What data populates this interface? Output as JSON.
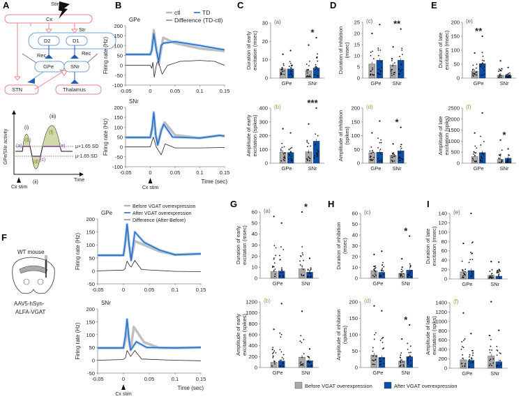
{
  "panel_letters": [
    "A",
    "B",
    "C",
    "D",
    "E",
    "F",
    "G",
    "H",
    "I"
  ],
  "diagram_A": {
    "stim": "Stim",
    "cx": "Cx",
    "str": "Str",
    "d2": "D2",
    "d1": "D1",
    "rec_left": "Rec",
    "rec_right": "Rec",
    "gpe": "GPe",
    "snr": "SNr",
    "stn": "STN",
    "thalamus": "Thalamus",
    "ylabel": "GPe/SNr activity",
    "xlabel": "Time",
    "cx_stim": "Cx stim",
    "peaks": [
      "(i)",
      "(ii)",
      "(iii)"
    ],
    "params": [
      "(a)",
      "(b)",
      "(c)",
      "(d)",
      "(e)",
      "(f)"
    ],
    "thr_high": "μ+1.65 SD",
    "thr_low": "μ-1.65 SD",
    "colors": {
      "pink": "#e8868a",
      "blue_line": "#6fa0d8",
      "olive": "#d3d8a8",
      "purple": "#7b3fa0",
      "dark_blue": "#1f5fb0"
    }
  },
  "mouse_F": {
    "title": "WT mouse",
    "virus_line1": "AAV5-hSyn-",
    "virus_line2": "ALFA-VGAT"
  },
  "colors": {
    "gray": "#b8b8b8",
    "blue": "#2a6fc4",
    "dark_blue": "#0b4ea8",
    "diff": "#222222",
    "label_purple": "#7b3fa0",
    "label_olive": "#9a9a4a"
  },
  "chart_data": [
    {
      "id": "B-GPe",
      "type": "line",
      "title": "GPe",
      "xlabel": "",
      "ylabel": "Firing rate (Hz)",
      "xlim": [
        -0.05,
        0.15
      ],
      "ylim": [
        -100,
        200
      ],
      "xticks": [
        "-0.05",
        "0",
        "0.05",
        "0.1",
        "0.15"
      ],
      "yticks": [
        "200",
        "150",
        "100",
        "50",
        "0",
        "-50",
        "-100"
      ],
      "legend": [
        "ctl",
        "TD",
        "Difference (TD-ctl)"
      ],
      "series": [
        {
          "name": "ctl",
          "x": [
            -0.05,
            0,
            0.003,
            0.007,
            0.012,
            0.017,
            0.022,
            0.026,
            0.05,
            0.1,
            0.15
          ],
          "y": [
            55,
            55,
            80,
            178,
            90,
            5,
            80,
            140,
            112,
            85,
            72
          ]
        },
        {
          "name": "TD",
          "x": [
            -0.05,
            0,
            0.003,
            0.007,
            0.012,
            0.017,
            0.022,
            0.026,
            0.05,
            0.1,
            0.15
          ],
          "y": [
            55,
            55,
            75,
            160,
            80,
            20,
            100,
            112,
            120,
            100,
            78
          ]
        },
        {
          "name": "Difference (TD-ctl)",
          "x": [
            -0.05,
            0,
            0.003,
            0.005,
            0.008,
            0.013,
            0.016,
            0.024,
            0.035,
            0.06,
            0.1,
            0.13,
            0.15
          ],
          "y": [
            0,
            0,
            -15,
            15,
            -60,
            10,
            20,
            -45,
            0,
            20,
            25,
            20,
            0
          ]
        }
      ]
    },
    {
      "id": "B-SNr",
      "type": "line",
      "title": "SNr",
      "xlabel": "Time (sec)",
      "ylabel": "Firing rate (Hz)",
      "xlim": [
        -0.05,
        0.15
      ],
      "ylim": [
        -100,
        200
      ],
      "xticks": [
        "-0.05",
        "0",
        "0.05",
        "0.1",
        "0.15"
      ],
      "yticks": [
        "200",
        "150",
        "100",
        "50",
        "0",
        "-50",
        "-100"
      ],
      "annotation": "Cx stim",
      "series": [
        {
          "name": "ctl",
          "x": [
            -0.05,
            0,
            0.004,
            0.007,
            0.011,
            0.015,
            0.022,
            0.029,
            0.05,
            0.1,
            0.14,
            0.15
          ],
          "y": [
            48,
            48,
            90,
            160,
            60,
            10,
            90,
            125,
            60,
            45,
            58,
            55
          ]
        },
        {
          "name": "TD",
          "x": [
            -0.05,
            0,
            0.004,
            0.007,
            0.011,
            0.015,
            0.022,
            0.027,
            0.045,
            0.1,
            0.14,
            0.15
          ],
          "y": [
            48,
            48,
            100,
            175,
            60,
            10,
            80,
            115,
            50,
            45,
            58,
            55
          ]
        },
        {
          "name": "Difference (TD-ctl)",
          "x": [
            -0.05,
            0,
            0.006,
            0.012,
            0.022,
            0.03,
            0.05,
            0.1,
            0.15
          ],
          "y": [
            0,
            0,
            50,
            0,
            -40,
            15,
            -5,
            -5,
            -3
          ]
        }
      ]
    },
    {
      "id": "C-top",
      "type": "bar",
      "tag": "(a)",
      "ylabel": [
        "Duration of early",
        "excitation (msec)"
      ],
      "ylim": [
        0,
        30
      ],
      "yticks": [
        0,
        10,
        20,
        30
      ],
      "categories": [
        "GPe",
        "SNr"
      ],
      "series": [
        {
          "name": "ctl",
          "values": [
            5,
            4
          ],
          "max": [
            13,
            18
          ]
        },
        {
          "name": "TD",
          "values": [
            5,
            5.5
          ],
          "max": [
            15,
            22
          ]
        }
      ],
      "significance": [
        "",
        "*"
      ]
    },
    {
      "id": "C-bottom",
      "type": "bar",
      "tag": "(b)",
      "ylabel": [
        "Amplitude of early",
        "excitation (spikes)"
      ],
      "ylim": [
        0,
        400
      ],
      "yticks": [
        0,
        100,
        200,
        300,
        400
      ],
      "categories": [
        "GPe",
        "SNr"
      ],
      "series": [
        {
          "name": "ctl",
          "values": [
            80,
            82
          ],
          "max": [
            250,
            285
          ]
        },
        {
          "name": "TD",
          "values": [
            78,
            160
          ],
          "max": [
            220,
            400
          ]
        }
      ],
      "significance": [
        "",
        "***"
      ]
    },
    {
      "id": "D-top",
      "type": "bar",
      "tag": "(c)",
      "ylabel": [
        "Duration of inhibition",
        "(msec)"
      ],
      "ylim": [
        0,
        25
      ],
      "yticks": [
        0,
        5,
        10,
        15,
        20,
        25
      ],
      "categories": [
        "GPe",
        "SNr"
      ],
      "series": [
        {
          "name": "ctl",
          "values": [
            6.3,
            5.8
          ],
          "max": [
            20,
            14
          ]
        },
        {
          "name": "TD",
          "values": [
            8,
            8
          ],
          "max": [
            24,
            22
          ]
        }
      ],
      "significance": [
        "",
        "**"
      ]
    },
    {
      "id": "D-bottom",
      "type": "bar",
      "tag": "(d)",
      "ylabel": [
        "Amplitude of inhibition",
        "(spikes)"
      ],
      "ylim": [
        0,
        200
      ],
      "yticks": [
        0,
        50,
        100,
        150,
        200
      ],
      "categories": [
        "GPe",
        "SNr"
      ],
      "series": [
        {
          "name": "ctl",
          "values": [
            38,
            28
          ],
          "max": [
            110,
            70
          ]
        },
        {
          "name": "TD",
          "values": [
            40,
            45
          ],
          "max": [
            153,
            130
          ]
        }
      ],
      "significance": [
        "",
        "*"
      ]
    },
    {
      "id": "E-top",
      "type": "bar",
      "tag": "(e)",
      "ylabel": [
        "Duration of late",
        "excitation (msec)"
      ],
      "ylim": [
        0,
        200
      ],
      "yticks": [
        0,
        50,
        100,
        150,
        200
      ],
      "categories": [
        "GPe",
        "SNr"
      ],
      "series": [
        {
          "name": "ctl",
          "values": [
            25,
            10
          ],
          "max": [
            90,
            62
          ]
        },
        {
          "name": "TD",
          "values": [
            52,
            10
          ],
          "max": [
            150,
            38
          ]
        }
      ],
      "significance": [
        "**",
        ""
      ]
    },
    {
      "id": "E-bottom",
      "type": "bar",
      "tag": "(f)",
      "ylabel": [
        "Amplitude of late",
        "excitation (spiks)"
      ],
      "ylim": [
        0,
        2500
      ],
      "yticks": [
        0,
        500,
        1000,
        1500,
        2000,
        2500
      ],
      "categories": [
        "GPe",
        "SNr"
      ],
      "series": [
        {
          "name": "ctl",
          "values": [
            300,
            170
          ],
          "max": [
            1370,
            1050
          ]
        },
        {
          "name": "TD",
          "values": [
            480,
            230
          ],
          "max": [
            2280,
            650
          ]
        }
      ],
      "significance": [
        "",
        "*"
      ]
    },
    {
      "id": "F-GPe",
      "type": "line",
      "title": "GPe",
      "xlabel": "",
      "ylabel": "Firing rate (Hz)",
      "xlim": [
        -0.05,
        0.15
      ],
      "ylim": [
        -50,
        200
      ],
      "xticks": [
        "-0.05",
        "0",
        "0.05",
        "0.1",
        "0.15"
      ],
      "yticks": [
        "200",
        "150",
        "100",
        "50",
        "0",
        "-50"
      ],
      "legend": [
        "Before VGAT overexpression",
        "After VGAT overexpression",
        "Difference (After-Before)"
      ],
      "series": [
        {
          "name": "Before VGAT overexpression",
          "x": [
            -0.05,
            0,
            0.003,
            0.007,
            0.011,
            0.015,
            0.022,
            0.04,
            0.07,
            0.1,
            0.15
          ],
          "y": [
            60,
            60,
            100,
            175,
            100,
            45,
            115,
            100,
            75,
            62,
            65
          ]
        },
        {
          "name": "After VGAT overexpression",
          "x": [
            -0.05,
            0,
            0.003,
            0.007,
            0.011,
            0.015,
            0.022,
            0.04,
            0.07,
            0.1,
            0.15
          ],
          "y": [
            60,
            60,
            100,
            180,
            100,
            40,
            150,
            110,
            80,
            62,
            66
          ]
        },
        {
          "name": "Difference (After-Before)",
          "x": [
            -0.05,
            0,
            0.003,
            0.007,
            0.012,
            0.015,
            0.022,
            0.035,
            0.1,
            0.15
          ],
          "y": [
            0,
            3,
            8,
            38,
            20,
            15,
            40,
            5,
            -2,
            -3
          ]
        }
      ]
    },
    {
      "id": "F-SNr",
      "type": "line",
      "title": "SNr",
      "xlabel": "Time (sec)",
      "ylabel": "Firing rate (Hz)",
      "xlim": [
        -0.05,
        0.15
      ],
      "ylim": [
        -50,
        200
      ],
      "xticks": [
        "-0.05",
        "0",
        "0.05",
        "0.1",
        "0.15"
      ],
      "yticks": [
        "200",
        "150",
        "100",
        "50",
        "0",
        "-50"
      ],
      "annotation": "Cx stim",
      "series": [
        {
          "name": "Before VGAT overexpression",
          "x": [
            -0.05,
            0,
            0.004,
            0.007,
            0.011,
            0.014,
            0.02,
            0.04,
            0.07,
            0.15
          ],
          "y": [
            48,
            48,
            80,
            125,
            70,
            40,
            130,
            70,
            48,
            50
          ]
        },
        {
          "name": "After VGAT overexpression",
          "x": [
            -0.05,
            0,
            0.004,
            0.007,
            0.011,
            0.014,
            0.025,
            0.045,
            0.1,
            0.15
          ],
          "y": [
            48,
            48,
            100,
            160,
            80,
            40,
            72,
            50,
            48,
            50
          ]
        },
        {
          "name": "Difference (After-Before)",
          "x": [
            -0.05,
            0,
            0.004,
            0.007,
            0.014,
            0.022,
            0.035,
            0.1,
            0.15
          ],
          "y": [
            0,
            3,
            10,
            38,
            15,
            38,
            5,
            0,
            -2
          ]
        }
      ]
    },
    {
      "id": "G-top",
      "type": "bar",
      "tag": "(a)",
      "ylabel": [
        "Duration of early",
        "excitation (msec)"
      ],
      "ylim": [
        0,
        60
      ],
      "yticks": [
        0,
        10,
        20,
        30,
        40,
        50,
        60
      ],
      "categories": [
        "GPe",
        "SNr"
      ],
      "series": [
        {
          "name": "Before VGAT overexpression",
          "values": [
            6,
            8.5
          ],
          "max": [
            56,
            60
          ]
        },
        {
          "name": "After VGAT overexpression",
          "values": [
            6.5,
            5.5
          ],
          "max": [
            50,
            18
          ]
        }
      ],
      "significance": [
        "",
        "*"
      ]
    },
    {
      "id": "G-bottom",
      "type": "bar",
      "tag": "(b)",
      "ylabel": [
        "Amplitude of early",
        "excitation (spikes)"
      ],
      "ylim": [
        0,
        1200
      ],
      "yticks": [
        0,
        200,
        400,
        600,
        800,
        1000,
        1200
      ],
      "categories": [
        "GPe",
        "SNr"
      ],
      "series": [
        {
          "name": "Before VGAT overexpression",
          "values": [
            95,
            190
          ],
          "max": [
            700,
            1030
          ]
        },
        {
          "name": "After VGAT overexpression",
          "values": [
            120,
            125
          ],
          "max": [
            1170,
            340
          ]
        }
      ],
      "significance": [
        "",
        ""
      ]
    },
    {
      "id": "H-top",
      "type": "bar",
      "tag": "(c)",
      "ylabel": [
        "Duration of inhibition",
        "(msec)"
      ],
      "ylim": [
        0,
        60
      ],
      "yticks": [
        0,
        10,
        20,
        30,
        40,
        50,
        60
      ],
      "categories": [
        "GPe",
        "SNr"
      ],
      "series": [
        {
          "name": "Before VGAT overexpression",
          "values": [
            7,
            4.5
          ],
          "max": [
            22,
            18
          ]
        },
        {
          "name": "After VGAT overexpression",
          "values": [
            5.5,
            7.5
          ],
          "max": [
            25,
            39
          ]
        }
      ],
      "significance": [
        "",
        "*"
      ]
    },
    {
      "id": "H-bottom",
      "type": "bar",
      "tag": "(d)",
      "ylabel": [
        "Amplitude of inhibition",
        "(spikes)"
      ],
      "ylim": [
        0,
        200
      ],
      "yticks": [
        0,
        50,
        100,
        150,
        200
      ],
      "categories": [
        "GPe",
        "SNr"
      ],
      "series": [
        {
          "name": "Before VGAT overexpression",
          "values": [
            38,
            20
          ],
          "max": [
            188,
            87
          ]
        },
        {
          "name": "After VGAT overexpression",
          "values": [
            31,
            33
          ],
          "max": [
            173,
            130
          ]
        }
      ],
      "significance": [
        "",
        "*"
      ]
    },
    {
      "id": "I-top",
      "type": "bar",
      "tag": "(e)",
      "ylabel": [
        "Duration of late",
        "excitation (msec)"
      ],
      "ylim": [
        0,
        140
      ],
      "yticks": [
        0,
        20,
        40,
        60,
        80,
        100,
        120,
        140
      ],
      "categories": [
        "GPe",
        "SNr"
      ],
      "series": [
        {
          "name": "Before VGAT overexpression",
          "values": [
            15,
            8
          ],
          "max": [
            76,
            37
          ]
        },
        {
          "name": "After VGAT overexpression",
          "values": [
            18,
            6
          ],
          "max": [
            140,
            36
          ]
        }
      ],
      "significance": [
        "",
        ""
      ]
    },
    {
      "id": "I-bottom",
      "type": "bar",
      "tag": "(f)",
      "ylabel": [
        "Amplitude of late",
        "excitation (spiks)"
      ],
      "ylim": [
        0,
        1400
      ],
      "yticks": [
        0,
        200,
        400,
        600,
        800,
        1000,
        1200,
        1400
      ],
      "categories": [
        "GPe",
        "SNr"
      ],
      "series": [
        {
          "name": "Before VGAT overexpression",
          "values": [
            180,
            260
          ],
          "max": [
            1180,
            1420
          ]
        },
        {
          "name": "After VGAT overexpression",
          "values": [
            170,
            140
          ],
          "max": [
            740,
            810
          ]
        }
      ],
      "significance": [
        "",
        ""
      ]
    }
  ],
  "bottom_legend": [
    "Before VGAT overexpression",
    "After VGAT overexpression"
  ]
}
